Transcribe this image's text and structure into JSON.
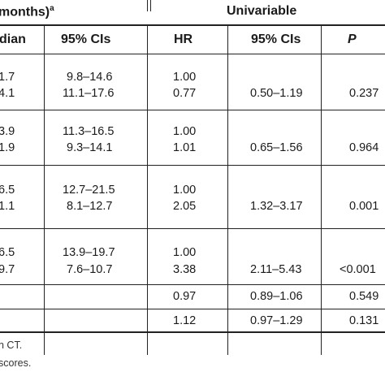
{
  "header": {
    "group_left": "months)",
    "group_left_sup": "a",
    "group_right": "Univariable",
    "columns": [
      "dian",
      "95% CIs",
      "HR",
      "95% CIs",
      "P"
    ]
  },
  "rows": [
    {
      "median": "1.7",
      "ci": "9.8–14.6",
      "hr": "1.00",
      "hr_ci": "",
      "p": ""
    },
    {
      "median": "4.1",
      "ci": "11.1–17.6",
      "hr": "0.77",
      "hr_ci": "0.50–1.19",
      "p": "0.237"
    },
    {
      "median": "3.9",
      "ci": "11.3–16.5",
      "hr": "1.00",
      "hr_ci": "",
      "p": ""
    },
    {
      "median": "1.9",
      "ci": "9.3–14.1",
      "hr": "1.01",
      "hr_ci": "0.65–1.56",
      "p": "0.964"
    },
    {
      "median": "6.5",
      "ci": "12.7–21.5",
      "hr": "1.00",
      "hr_ci": "",
      "p": ""
    },
    {
      "median": "1.1",
      "ci": "8.1–12.7",
      "hr": "2.05",
      "hr_ci": "1.32–3.17",
      "p": "0.001"
    },
    {
      "median": "6.5",
      "ci": "13.9–19.7",
      "hr": "1.00",
      "hr_ci": "",
      "p": ""
    },
    {
      "median": "9.7",
      "ci": "7.6–10.7",
      "hr": "3.38",
      "hr_ci": "2.11–5.43",
      "p": "<0.001"
    },
    {
      "median": "",
      "ci": "",
      "hr": "0.97",
      "hr_ci": "0.89–1.06",
      "p": "0.549"
    },
    {
      "median": "",
      "ci": "",
      "hr": "1.12",
      "hr_ci": "0.97–1.29",
      "p": "0.131"
    }
  ],
  "footnotes": [
    "n CT.",
    "scores."
  ]
}
